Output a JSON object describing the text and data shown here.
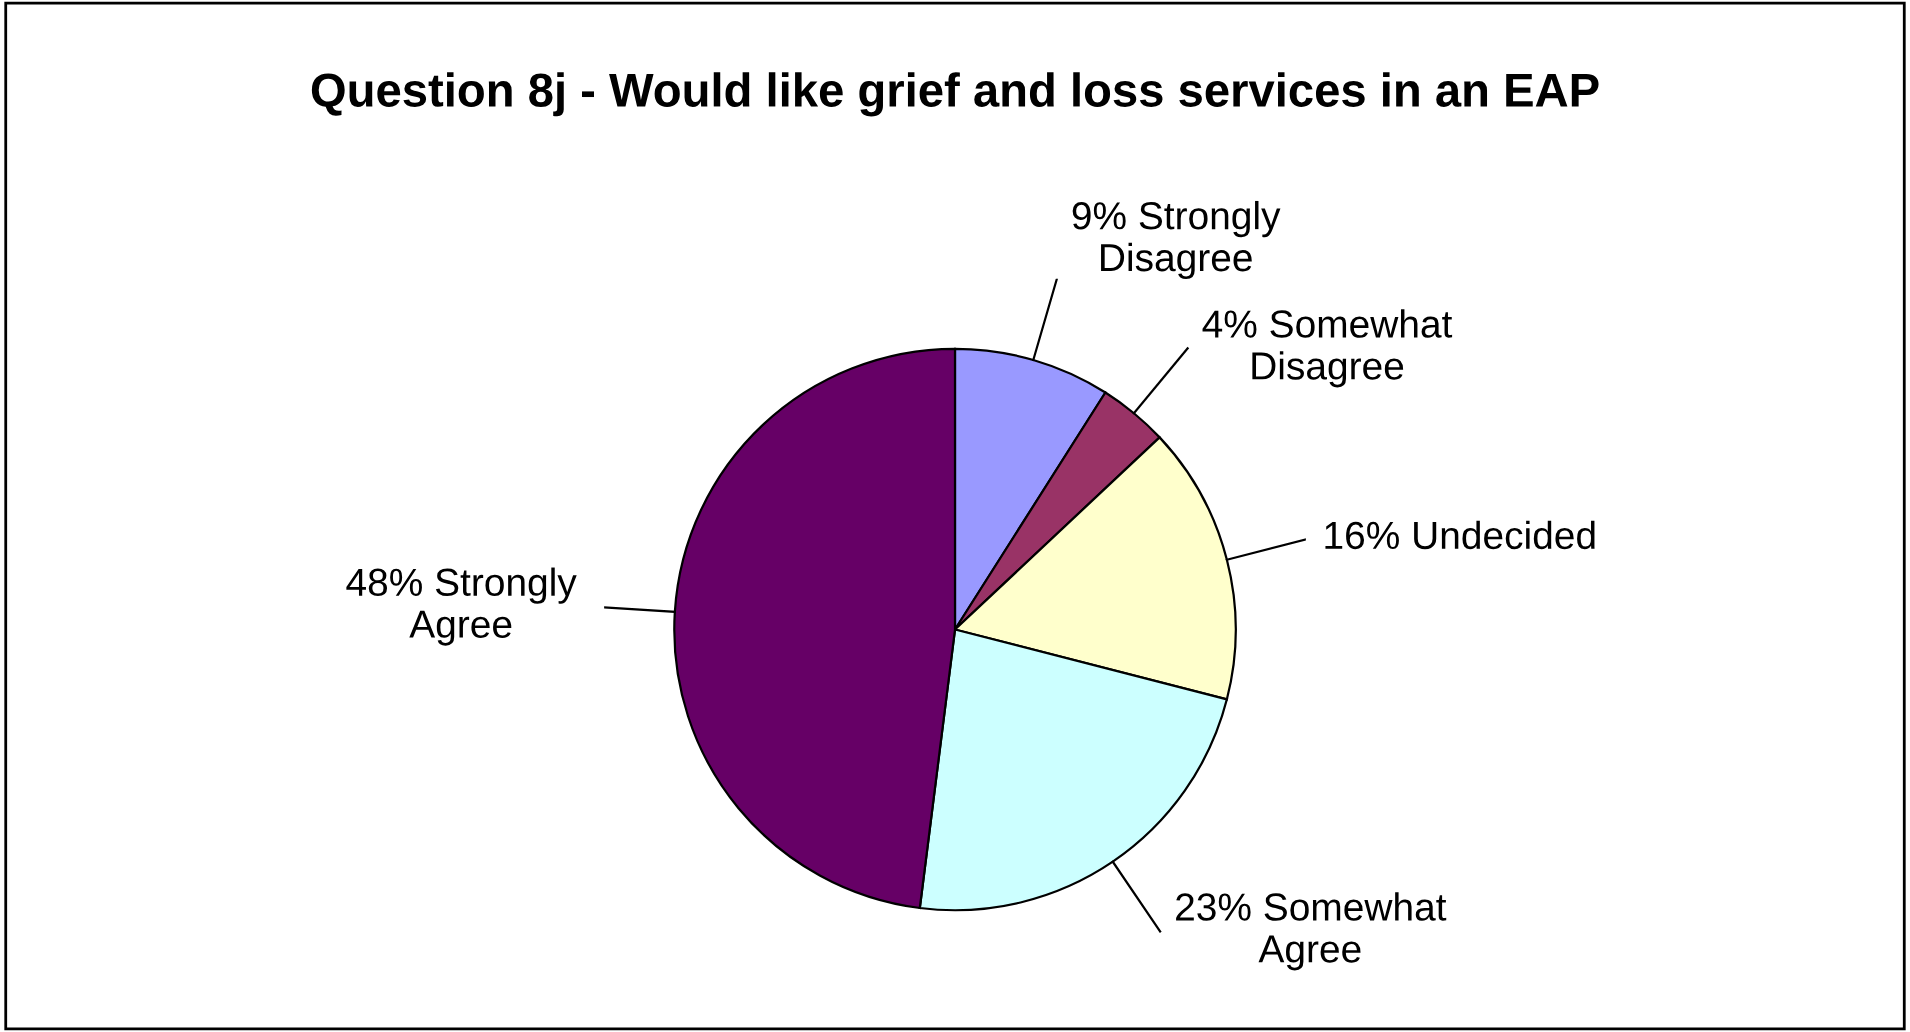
{
  "chart_data": {
    "type": "pie",
    "title": "Question 8j - Would like grief and loss services in an EAP",
    "categories": [
      "Strongly Disagree",
      "Somewhat Disagree",
      "Undecided",
      "Somewhat Agree",
      "Strongly Agree"
    ],
    "values": [
      9,
      4,
      16,
      23,
      48
    ],
    "value_labels": [
      "9%",
      "4%",
      "16%",
      "23%",
      "48%"
    ],
    "colors": [
      "#9999ff",
      "#993366",
      "#ffffcc",
      "#ccffff",
      "#660066"
    ]
  }
}
